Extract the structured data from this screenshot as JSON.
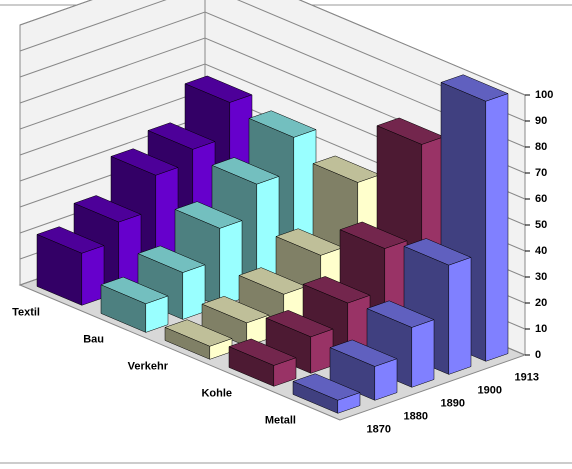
{
  "chart_data": {
    "type": "bar3d",
    "categories": [
      "1870",
      "1880",
      "1890",
      "1900",
      "1913"
    ],
    "series": [
      {
        "name": "Textil",
        "color": "#6600cc",
        "values": [
          20,
          27,
          40,
          45,
          58
        ]
      },
      {
        "name": "Bau",
        "color": "#99ffff",
        "values": [
          11,
          18,
          30,
          42,
          55
        ]
      },
      {
        "name": "Verkehr",
        "color": "#ffffcc",
        "values": [
          5,
          9,
          15,
          25,
          48
        ]
      },
      {
        "name": "Kohle",
        "color": "#993366",
        "values": [
          8,
          14,
          22,
          38,
          73
        ]
      },
      {
        "name": "Metall",
        "color": "#8080ff",
        "values": [
          5,
          13,
          23,
          42,
          100
        ]
      }
    ],
    "ylim": [
      0,
      100
    ],
    "yticks": [
      0,
      10,
      20,
      30,
      40,
      50,
      60,
      70,
      80,
      90,
      100
    ],
    "grid": true
  }
}
